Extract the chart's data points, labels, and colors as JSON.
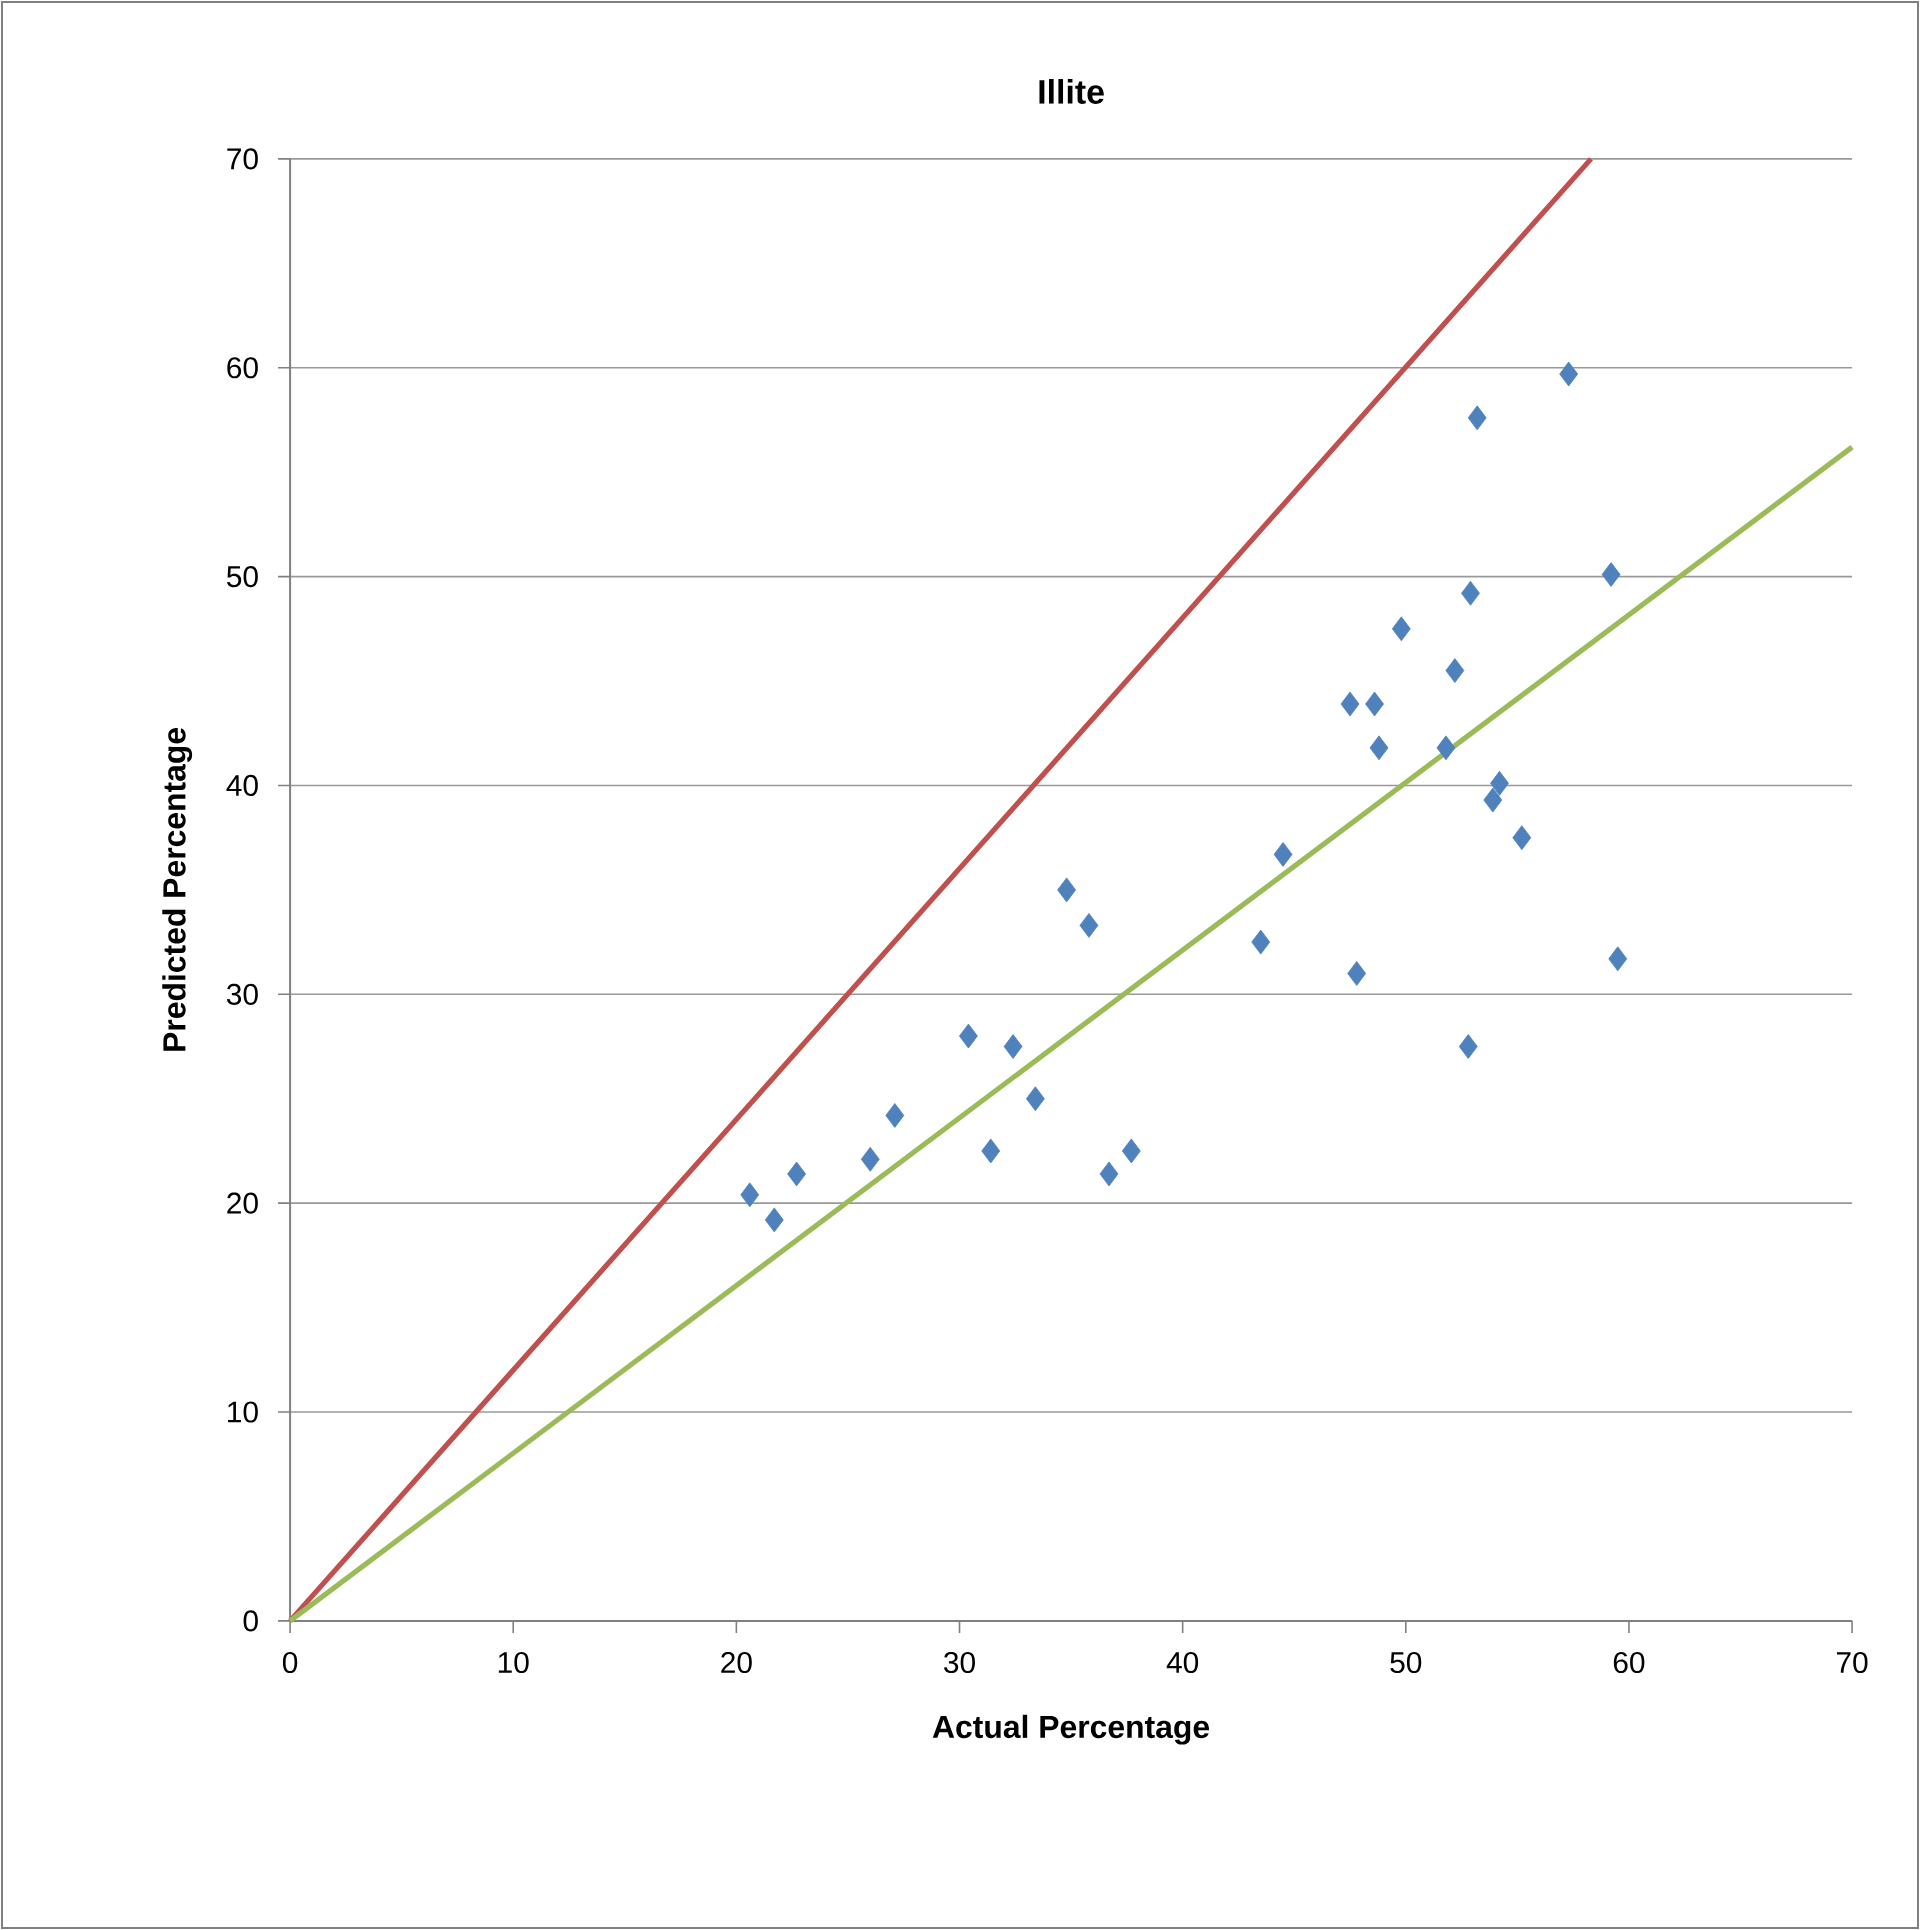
{
  "chart_data": {
    "type": "scatter",
    "title": "Illite",
    "xlabel": "Actual Percentage",
    "ylabel": "Predicted Percentage",
    "xlim": [
      0,
      70
    ],
    "ylim": [
      0,
      70
    ],
    "xticks": [
      0,
      10,
      20,
      30,
      40,
      50,
      60,
      70
    ],
    "yticks": [
      0,
      10,
      20,
      30,
      40,
      50,
      60,
      70
    ],
    "grid": "y",
    "marker": "diamond",
    "series": [
      {
        "color": "#4f81bd",
        "x": [
          20.6,
          21.7,
          22.7,
          26.0,
          27.1,
          30.4,
          31.4,
          32.4,
          33.4,
          34.8,
          35.8,
          36.7,
          37.7,
          43.5,
          44.5,
          47.5,
          47.8,
          48.6,
          48.8,
          49.8,
          51.8,
          52.2,
          52.9,
          53.2,
          52.8,
          53.9,
          54.2,
          55.2,
          57.3,
          59.2,
          59.5
        ],
        "values": [
          20.4,
          19.2,
          21.4,
          22.1,
          24.2,
          28.0,
          22.5,
          27.5,
          25.0,
          35.0,
          33.3,
          21.4,
          22.5,
          32.5,
          36.7,
          43.9,
          31.0,
          43.9,
          41.8,
          47.5,
          41.8,
          45.5,
          49.2,
          57.6,
          27.5,
          39.3,
          40.1,
          37.5,
          59.7,
          50.1,
          31.7
        ]
      },
      {
        "type": "line",
        "marker": "none",
        "color": "#c0504d",
        "x": [
          0,
          58.3
        ],
        "values": [
          0,
          70
        ]
      },
      {
        "type": "line",
        "marker": "none",
        "color": "#9bbb59",
        "x": [
          0,
          70
        ],
        "values": [
          0,
          56.2
        ]
      }
    ]
  }
}
